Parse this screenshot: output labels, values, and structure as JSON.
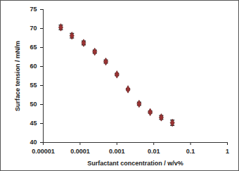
{
  "chart_data": {
    "type": "scatter",
    "xlabel": "Surfactant concentration / w/v%",
    "ylabel": "Surface tension / mN/m",
    "x": [
      3e-05,
      6e-05,
      0.000125,
      0.00025,
      0.0005,
      0.001,
      0.002,
      0.004,
      0.008,
      0.016,
      0.032
    ],
    "values": [
      70.3,
      68.1,
      66.2,
      63.9,
      61.3,
      57.9,
      54.0,
      50.2,
      48.0,
      46.6,
      45.2
    ],
    "errors": [
      0.6,
      0.6,
      0.5,
      0.4,
      0.4,
      0.3,
      0.2,
      0.4,
      0.3,
      0.5,
      0.7
    ],
    "color": "#993333",
    "marker": "diamond",
    "log": "x",
    "xlim": [
      1e-05,
      1
    ],
    "xticks": [
      1e-05,
      0.0001,
      0.001,
      0.01,
      0.1,
      1
    ],
    "ylim": [
      40,
      75
    ],
    "yticks": [
      40,
      45,
      50,
      55,
      60,
      65,
      70,
      75
    ],
    "grid": false
  }
}
